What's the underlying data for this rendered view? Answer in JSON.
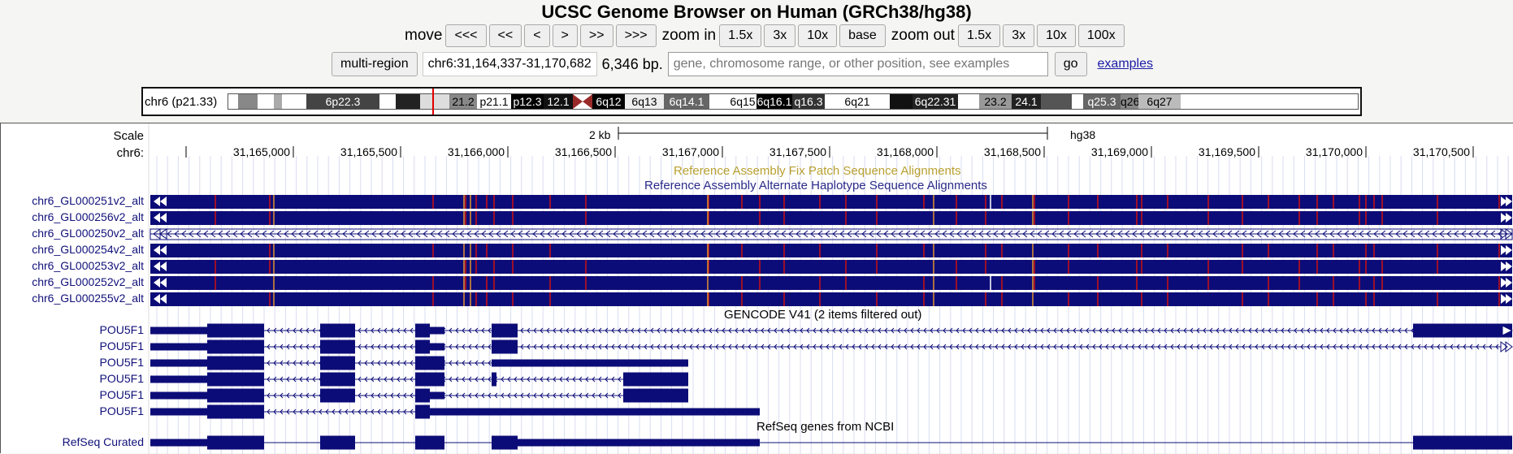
{
  "title": "UCSC Genome Browser on Human (GRCh38/hg38)",
  "nav": {
    "move_label": "move",
    "move_buttons": [
      "<<<",
      "<<",
      "<",
      ">",
      ">>",
      ">>>"
    ],
    "zoom_in_label": "zoom in",
    "zoom_in_buttons": [
      "1.5x",
      "3x",
      "10x",
      "base"
    ],
    "zoom_out_label": "zoom out",
    "zoom_out_buttons": [
      "1.5x",
      "3x",
      "10x",
      "100x"
    ]
  },
  "position": {
    "multi_region_label": "multi-region",
    "range": "chr6:31,164,337-31,170,682",
    "size": "6,346 bp.",
    "search_placeholder": "gene, chromosome range, or other position, see examples",
    "go_label": "go",
    "examples_label": "examples"
  },
  "ideogram": {
    "label": "chr6 (p21.33)",
    "bands": [
      {
        "name": "",
        "color": "#ffffff"
      },
      {
        "name": "",
        "color": "#888888"
      },
      {
        "name": "",
        "color": "#ffffff"
      },
      {
        "name": "",
        "color": "#aaaaaa"
      },
      {
        "name": "",
        "color": "#ffffff"
      },
      {
        "name": "6p22.3",
        "color": "#444444"
      },
      {
        "name": "",
        "color": "#ffffff"
      },
      {
        "name": "",
        "color": "#222222"
      },
      {
        "name": "",
        "color": "#dddddd"
      },
      {
        "name": "21.2",
        "color": "#888888"
      },
      {
        "name": "p21.1",
        "color": "#ffffff"
      },
      {
        "name": "p12.3",
        "color": "#000000"
      },
      {
        "name": "12.1",
        "color": "#111111"
      },
      {
        "name": "",
        "color": "#ffffff"
      },
      {
        "name": "6q12",
        "color": "#000000"
      },
      {
        "name": "6q13",
        "color": "#eeeeee"
      },
      {
        "name": "6q14.1",
        "color": "#666666"
      },
      {
        "name": "",
        "color": "#ffffff"
      },
      {
        "name": "6q15",
        "color": "#ffffff"
      },
      {
        "name": "6q16.1",
        "color": "#000000"
      },
      {
        "name": "q16.3",
        "color": "#333333"
      },
      {
        "name": "6q21",
        "color": "#ffffff"
      },
      {
        "name": "",
        "color": "#111111"
      },
      {
        "name": "6q22.31",
        "color": "#222222"
      },
      {
        "name": "",
        "color": "#ffffff"
      },
      {
        "name": "23.2",
        "color": "#999999"
      },
      {
        "name": "24.1",
        "color": "#222222"
      },
      {
        "name": "",
        "color": "#555555"
      },
      {
        "name": "",
        "color": "#ffffff"
      },
      {
        "name": "q25.3",
        "color": "#666666"
      },
      {
        "name": "q26",
        "color": "#888888"
      },
      {
        "name": "6q27",
        "color": "#bbbbbb"
      }
    ]
  },
  "scale": {
    "label": "Scale",
    "chrom_label": "chr6:",
    "bar_label": "2 kb",
    "assembly": "hg38",
    "ticks": [
      "31,165,000",
      "31,165,500",
      "31,166,000",
      "31,166,500",
      "31,167,000",
      "31,167,500",
      "31,168,000",
      "31,168,500",
      "31,169,000",
      "31,169,500",
      "31,170,000",
      "31,170,500"
    ]
  },
  "fix_patch_title": "Reference Assembly Fix Patch Sequence Alignments",
  "alt_haplo_title": "Reference Assembly Alternate Haplotype Sequence Alignments",
  "alt_tracks": [
    "chr6_GL000251v2_alt",
    "chr6_GL000256v2_alt",
    "chr6_GL000250v2_alt",
    "chr6_GL000254v2_alt",
    "chr6_GL000253v2_alt",
    "chr6_GL000252v2_alt",
    "chr6_GL000255v2_alt"
  ],
  "gencode_title": "GENCODE V41 (2 items filtered out)",
  "gencode_tracks": [
    "POU5F1",
    "POU5F1",
    "POU5F1",
    "POU5F1",
    "POU5F1",
    "POU5F1"
  ],
  "refseq_title": "RefSeq genes from NCBI",
  "refseq_label": "RefSeq Curated",
  "colors": {
    "feature": "#0c0c78",
    "mismatch": "#cc1010",
    "insertion": "#e09030",
    "fix_patch": "#b8a030",
    "alt_title": "#2a2a8a"
  }
}
